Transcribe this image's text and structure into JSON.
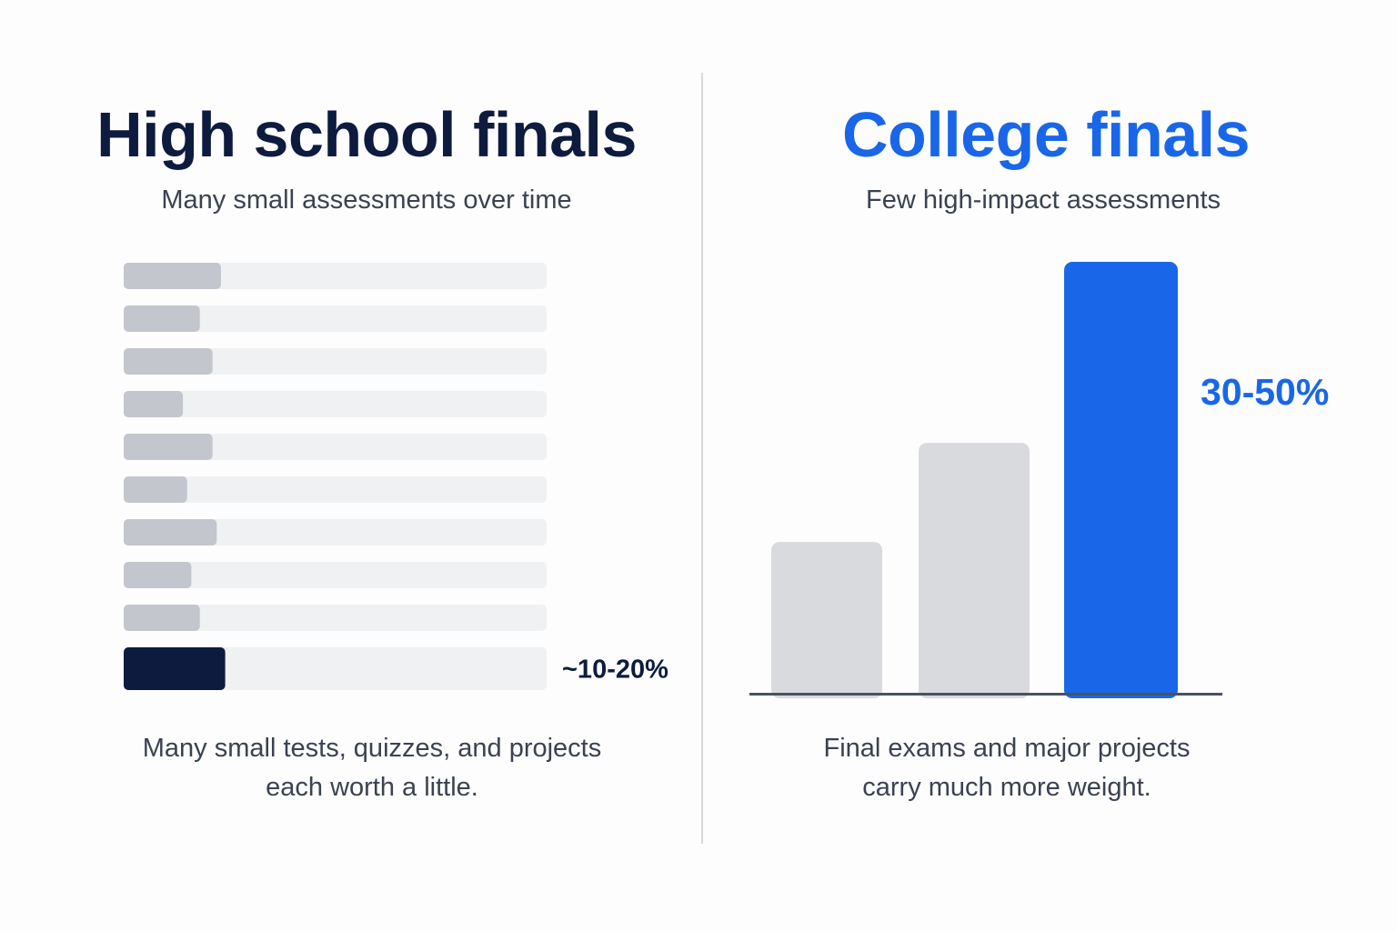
{
  "left": {
    "title": "High school finals",
    "subtitle": "Many small assessments over time",
    "caption_lines": [
      "Many small tests, quizzes, and projects",
      "each worth a little."
    ]
  },
  "right": {
    "title": "College finals",
    "subtitle": "Few high-impact assessments",
    "caption_lines": [
      "Final exams and major projects",
      "carry much more weight."
    ]
  },
  "colors": {
    "navy": "#0d1b3e",
    "blue": "#1967e8",
    "track": "#f0f1f3",
    "small_fill": "#c3c6cc",
    "gray_bar": "#d8dade",
    "baseline": "#4a5260"
  },
  "chart_data": [
    {
      "type": "bar",
      "orientation": "horizontal",
      "values": [
        0.23,
        0.18,
        0.21,
        0.14,
        0.21,
        0.15,
        0.22,
        0.16,
        0.18,
        0.24
      ],
      "highlight_index": 9,
      "highlight_label": "~10-20%",
      "xlim": [
        0,
        1
      ]
    },
    {
      "type": "bar",
      "orientation": "vertical",
      "values": [
        0.35,
        0.58,
        1.0
      ],
      "highlight_index": 2,
      "highlight_label": "30-50%",
      "ylim": [
        0,
        1
      ]
    }
  ]
}
